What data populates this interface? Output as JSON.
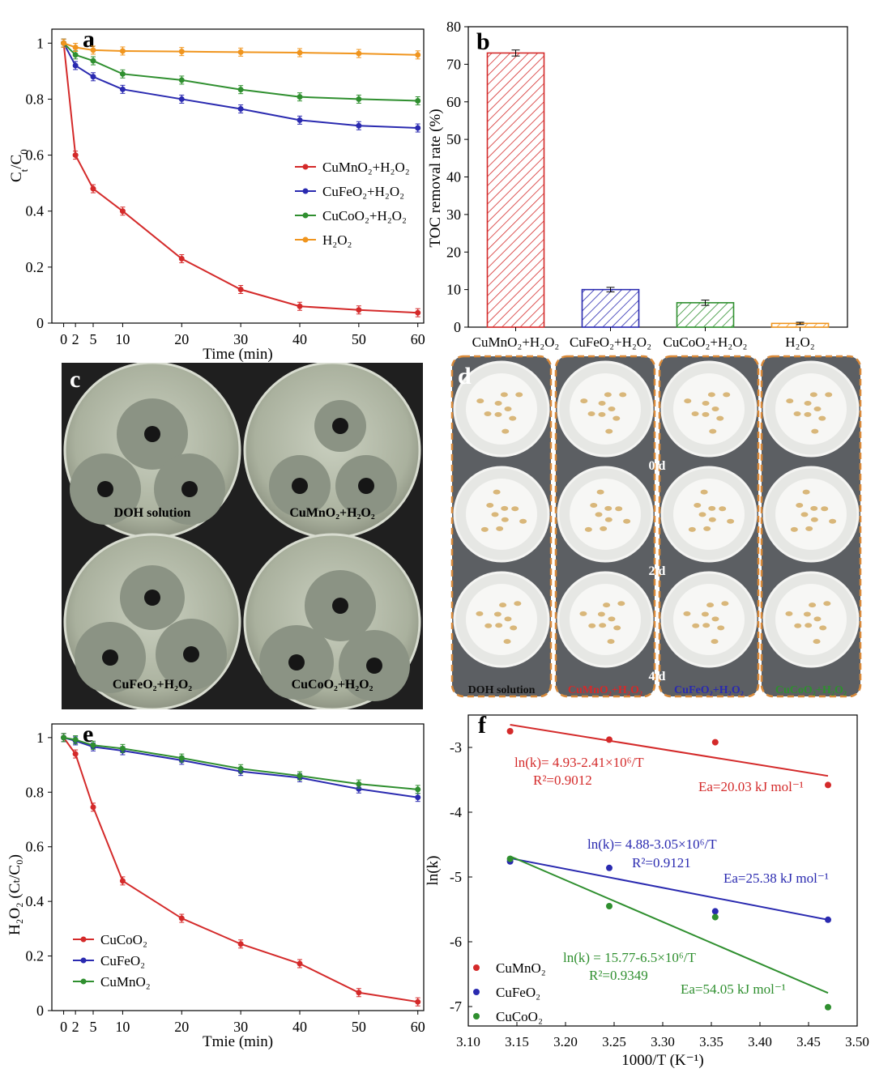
{
  "panel_c": {
    "label": "c",
    "dishes": [
      {
        "label": "DOH solution"
      },
      {
        "label": "CuMnO₂+H₂O₂"
      },
      {
        "label": "CuFeO₂+H₂O₂"
      },
      {
        "label": "CuCoO₂+H₂O₂"
      }
    ]
  },
  "panel_d": {
    "label": "d",
    "columns": [
      "DOH solution",
      "CuMnO₂+H₂O₂",
      "CuFeO₂+H₂O₂",
      "CuCoO₂+H₂O₂"
    ],
    "column_colors": [
      "#111111",
      "#d42a2a",
      "#2a2ab0",
      "#2f8f2f"
    ],
    "days": [
      "0 d",
      "2 d",
      "4 d"
    ],
    "border_color": "#d98a3a"
  },
  "chart_data": [
    {
      "id": "a",
      "type": "line",
      "label": "a",
      "xlabel": "Time (min)",
      "ylabel_main": "C",
      "ylabel_sub1": "t",
      "ylabel_mid": "/C",
      "ylabel_sub2": "0",
      "x": [
        0,
        2,
        5,
        10,
        20,
        30,
        40,
        50,
        60
      ],
      "xticks": [
        0,
        2,
        5,
        10,
        20,
        30,
        40,
        50,
        60
      ],
      "xlim": [
        -2,
        61
      ],
      "ylim": [
        0,
        1.05
      ],
      "yticks": [
        0,
        0.2,
        0.4,
        0.6,
        0.8,
        1
      ],
      "ytick_labels": [
        "0",
        "0.2",
        "0.4",
        "0.6",
        "0.8",
        "1"
      ],
      "legend_position": "center-right",
      "series": [
        {
          "name": "CuMnO₂+H₂O₂",
          "color": "#d42a2a",
          "values": [
            1.0,
            0.6,
            0.48,
            0.4,
            0.23,
            0.12,
            0.06,
            0.047,
            0.037
          ]
        },
        {
          "name": "CuFeO₂+H₂O₂",
          "color": "#2a2ab0",
          "values": [
            1.0,
            0.92,
            0.88,
            0.835,
            0.8,
            0.765,
            0.725,
            0.705,
            0.697
          ]
        },
        {
          "name": "CuCoO₂+H₂O₂",
          "color": "#2f8f2f",
          "values": [
            1.0,
            0.958,
            0.937,
            0.89,
            0.868,
            0.834,
            0.808,
            0.8,
            0.794
          ]
        },
        {
          "name": "H₂O₂",
          "color": "#f0951e",
          "values": [
            1.0,
            0.985,
            0.975,
            0.972,
            0.97,
            0.968,
            0.966,
            0.963,
            0.958
          ]
        }
      ]
    },
    {
      "id": "b",
      "type": "bar",
      "label": "b",
      "ylabel": "TOC removal rate (%)",
      "categories": [
        "CuMnO₂+H₂O₂",
        "CuFeO₂+H₂O₂",
        "CuCoO₂+H₂O₂",
        "H₂O₂"
      ],
      "values": [
        73,
        10,
        6.5,
        1
      ],
      "errors": [
        0.8,
        0.6,
        0.7,
        0.3
      ],
      "colors": [
        "#d42a2a",
        "#2a2ab0",
        "#2f8f2f",
        "#f0951e"
      ],
      "ylim": [
        0,
        80
      ],
      "yticks": [
        0,
        10,
        20,
        30,
        40,
        50,
        60,
        70,
        80
      ]
    },
    {
      "id": "e",
      "type": "line",
      "label": "e",
      "xlabel": "Tmie (min)",
      "ylabel": "H₂O₂ (Cₜ/C₀)",
      "x": [
        0,
        2,
        5,
        10,
        20,
        30,
        40,
        50,
        60
      ],
      "xticks": [
        0,
        2,
        5,
        10,
        20,
        30,
        40,
        50,
        60
      ],
      "xlim": [
        -2,
        61
      ],
      "ylim": [
        0,
        1.05
      ],
      "yticks": [
        0,
        0.2,
        0.4,
        0.6,
        0.8,
        1
      ],
      "ytick_labels": [
        "0",
        "0.2",
        "0.4",
        "0.6",
        "0.8",
        "1"
      ],
      "legend_position": "bottom-left",
      "series": [
        {
          "name": "CuCoO₂",
          "color": "#d42a2a",
          "values": [
            1.0,
            0.94,
            0.745,
            0.475,
            0.338,
            0.244,
            0.172,
            0.066,
            0.032
          ]
        },
        {
          "name": "CuFeO₂",
          "color": "#2a2ab0",
          "values": [
            1.0,
            0.988,
            0.966,
            0.952,
            0.917,
            0.876,
            0.853,
            0.812,
            0.781
          ]
        },
        {
          "name": "CuMnO₂",
          "color": "#2f8f2f",
          "values": [
            1.0,
            0.992,
            0.972,
            0.96,
            0.925,
            0.886,
            0.86,
            0.83,
            0.81
          ]
        }
      ]
    },
    {
      "id": "f",
      "type": "scatter",
      "label": "f",
      "xlabel": "1000/T (K⁻¹)",
      "ylabel": "ln(k)",
      "xlim": [
        3.1,
        3.5
      ],
      "ylim": [
        -7.3,
        -2.5
      ],
      "xticks": [
        3.1,
        3.15,
        3.2,
        3.25,
        3.3,
        3.35,
        3.4,
        3.45,
        3.5
      ],
      "xtick_labels": [
        "3.10",
        "3.15",
        "3.20",
        "3.25",
        "3.30",
        "3.35",
        "3.40",
        "3.45",
        "3.50"
      ],
      "yticks": [
        -7,
        -6,
        -5,
        -4,
        -3
      ],
      "legend_position": "bottom-left",
      "series": [
        {
          "name": "CuMnO₂",
          "color": "#d42a2a",
          "x": [
            3.143,
            3.245,
            3.354,
            3.47
          ],
          "y": [
            -2.75,
            -2.88,
            -2.92,
            -3.58
          ],
          "fit": [
            [
              3.143,
              -2.65
            ],
            [
              3.47,
              -3.44
            ]
          ],
          "eq": "ln(k)= 4.93-2.41×10⁶/T",
          "r2": "R²=0.9012",
          "ea": "Ea=20.03 kJ mol⁻¹"
        },
        {
          "name": "CuFeO₂",
          "color": "#2a2ab0",
          "x": [
            3.143,
            3.245,
            3.354,
            3.47
          ],
          "y": [
            -4.76,
            -4.86,
            -5.53,
            -5.66
          ],
          "fit": [
            [
              3.143,
              -4.71
            ],
            [
              3.47,
              -5.66
            ]
          ],
          "eq": "ln(k)= 4.88-3.05×10⁶/T",
          "r2": "R²=0.9121",
          "ea": "Ea=25.38 kJ mol⁻¹"
        },
        {
          "name": "CuCoO₂",
          "color": "#2f8f2f",
          "x": [
            3.143,
            3.245,
            3.354,
            3.47
          ],
          "y": [
            -4.72,
            -5.45,
            -5.62,
            -7.01
          ],
          "fit": [
            [
              3.143,
              -4.68
            ],
            [
              3.47,
              -6.79
            ]
          ],
          "eq": "ln(k) = 15.77-6.5×10⁶/T",
          "r2": "R²=0.9349",
          "ea": "Ea=54.05 kJ mol⁻¹"
        }
      ]
    }
  ]
}
